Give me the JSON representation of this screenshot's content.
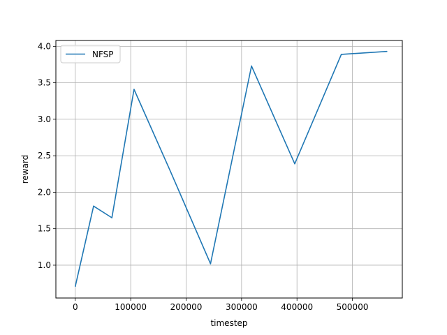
{
  "chart_data": {
    "type": "line",
    "title": "",
    "xlabel": "timestep",
    "ylabel": "reward",
    "xlim": [
      -35000,
      590000
    ],
    "ylim": [
      0.55,
      4.08
    ],
    "xticks": [
      0,
      100000,
      200000,
      300000,
      400000,
      500000
    ],
    "xtick_labels": [
      "0",
      "100000",
      "200000",
      "300000",
      "400000",
      "500000"
    ],
    "yticks": [
      1.0,
      1.5,
      2.0,
      2.5,
      3.0,
      3.5,
      4.0
    ],
    "ytick_labels": [
      "1.0",
      "1.5",
      "2.0",
      "2.5",
      "3.0",
      "3.5",
      "4.0"
    ],
    "grid": true,
    "legend_position": "top-left",
    "series": [
      {
        "name": "NFSP",
        "color": "#1f77b4",
        "x": [
          0,
          33000,
          66000,
          106000,
          172000,
          244000,
          318000,
          396000,
          480000,
          562000
        ],
        "y": [
          0.71,
          1.81,
          1.65,
          3.41,
          2.28,
          1.02,
          3.73,
          2.39,
          3.89,
          3.93
        ]
      }
    ]
  }
}
